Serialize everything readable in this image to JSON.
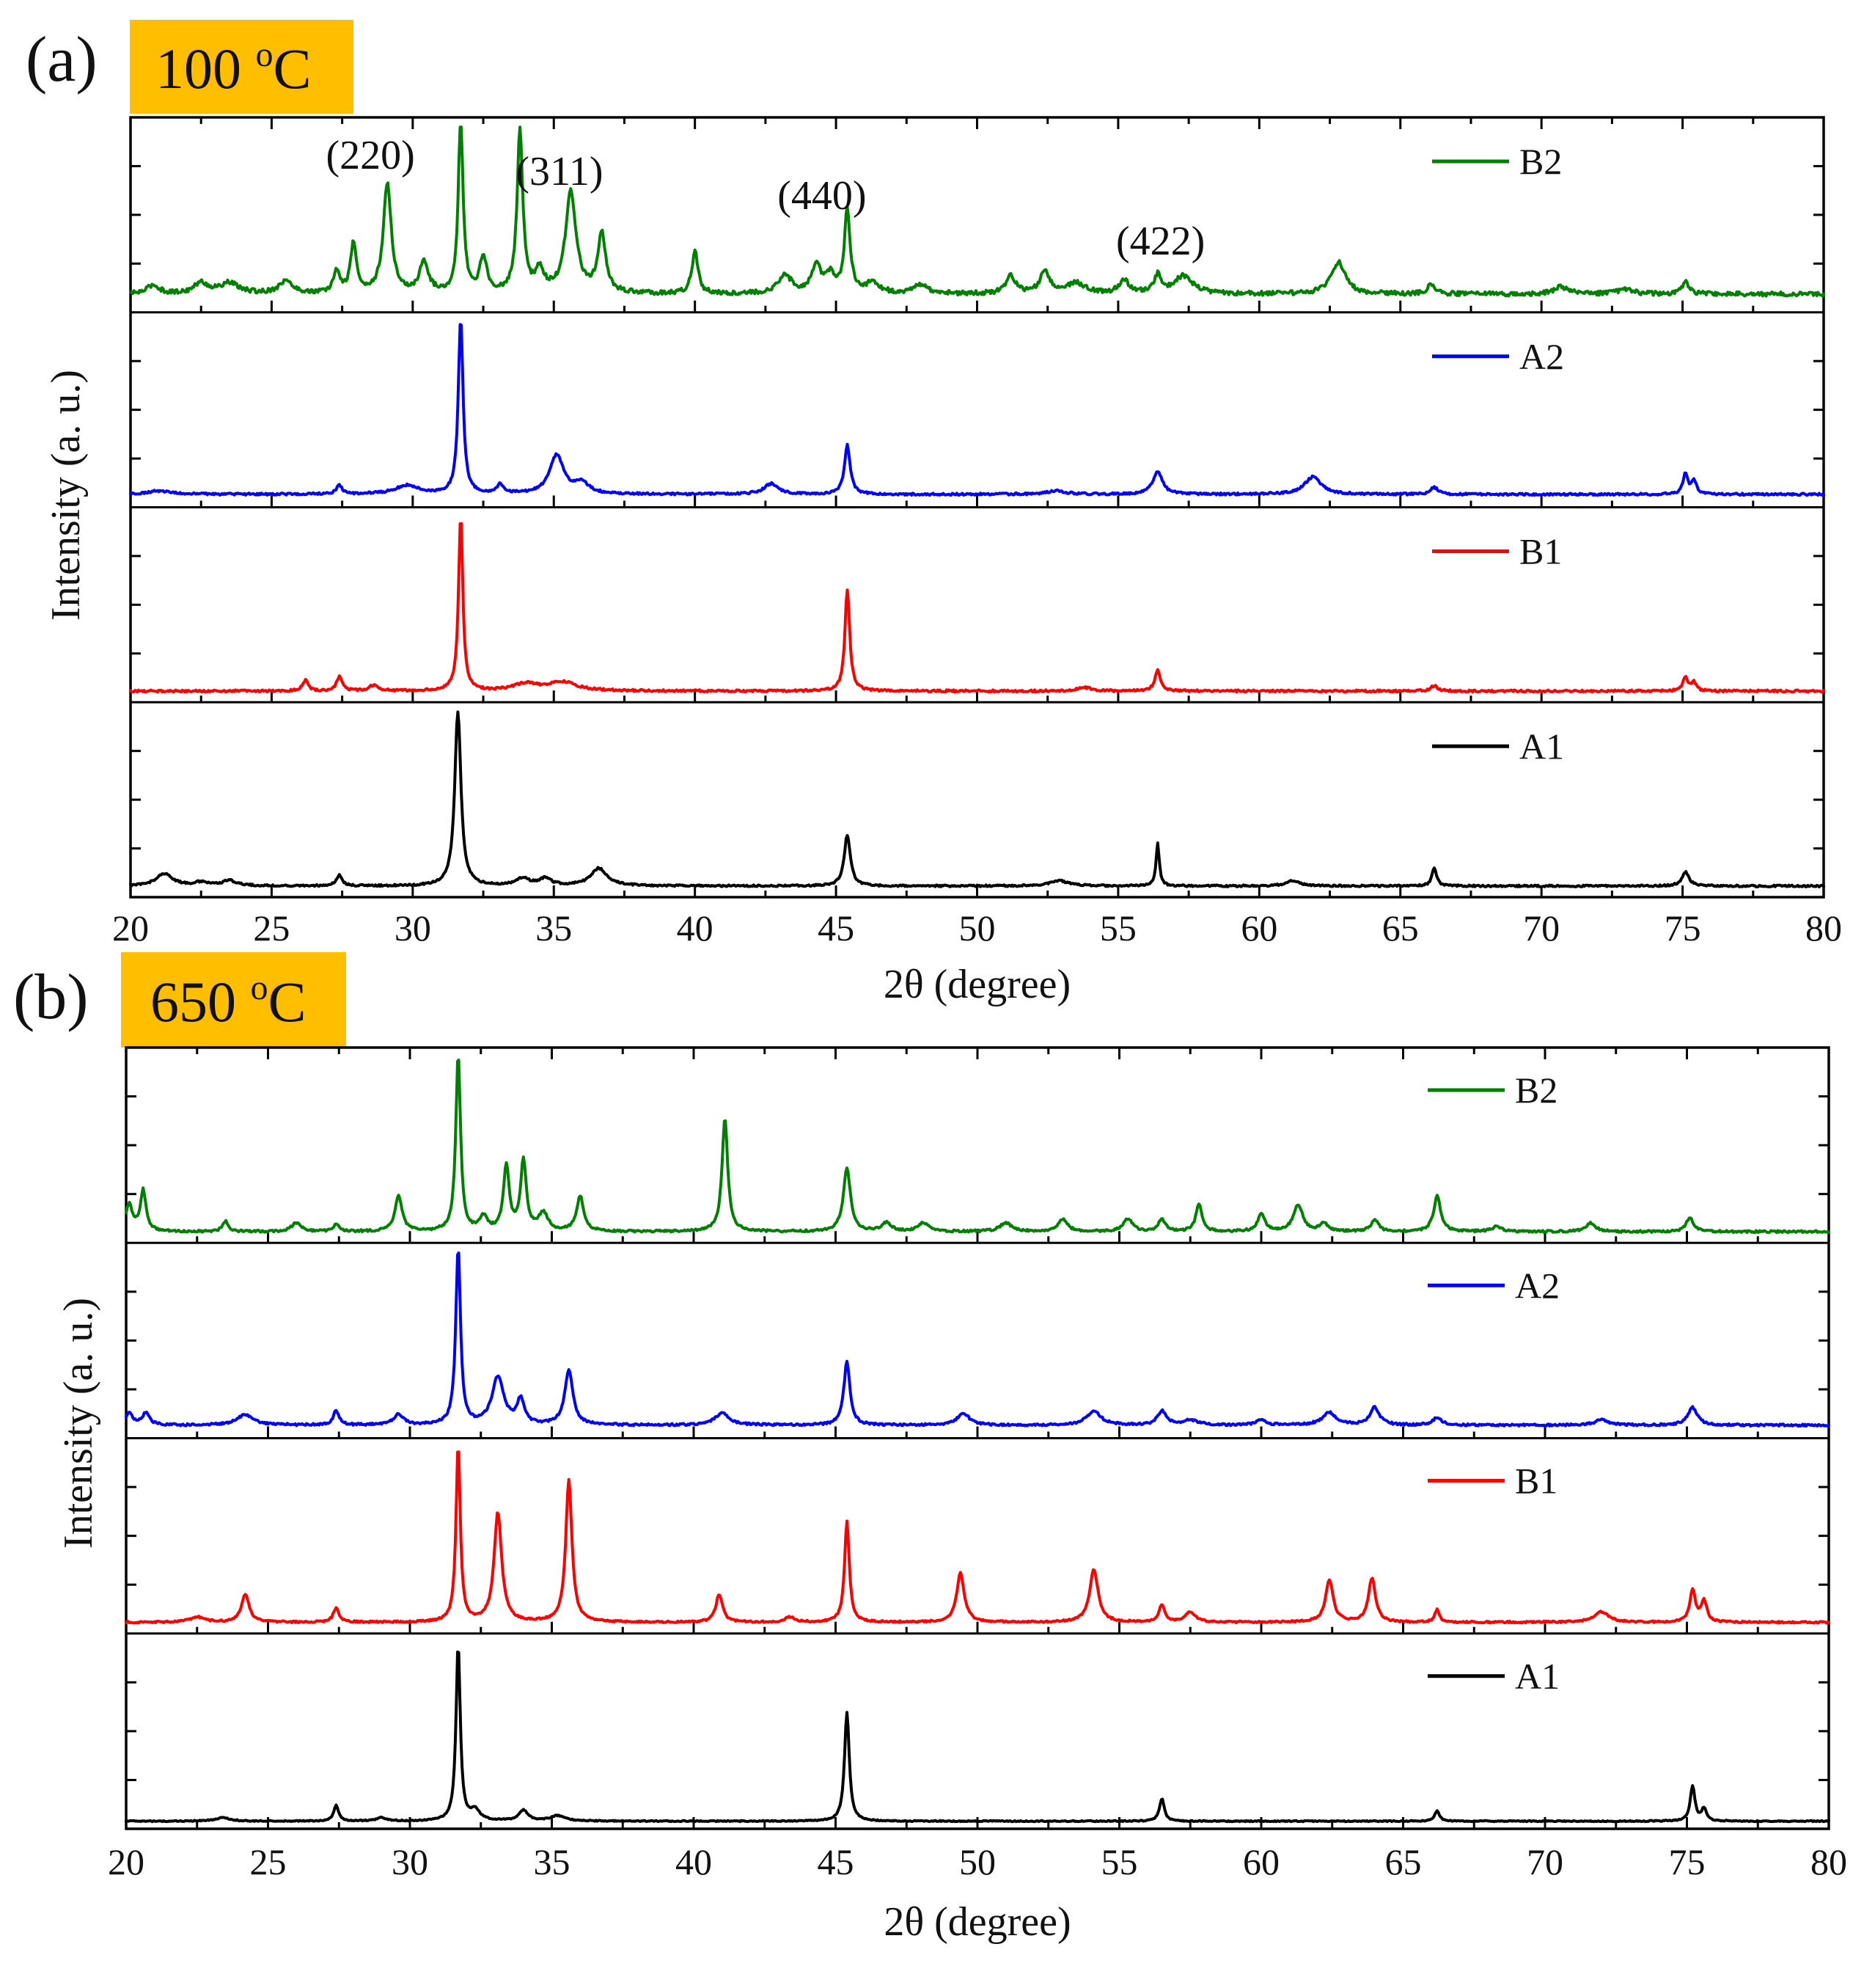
{
  "figure": {
    "colors": {
      "A1": "#000000",
      "B1": "#FF0000",
      "A2": "#0000FF",
      "B2": "#008000",
      "temp_box": "#FFBF00"
    }
  },
  "chart_data": [
    {
      "type": "line",
      "panel_label": "(a)",
      "temperature_label": "100 °C",
      "temperature_value": "100",
      "temperature_unit": "C",
      "temperature_superscript": "o",
      "xlabel": "2θ (degree)",
      "ylabel": "Intensity (a. u.)",
      "xlim": [
        20,
        80
      ],
      "xticks": [
        "20",
        "25",
        "30",
        "35",
        "40",
        "45",
        "50",
        "55",
        "60",
        "65",
        "70",
        "75",
        "80"
      ],
      "annotations": [
        {
          "text": "(220)",
          "x": 28.5
        },
        {
          "text": "(311)",
          "x": 35.2
        },
        {
          "text": "(440)",
          "x": 44.5
        },
        {
          "text": "(422)",
          "x": 56.5
        }
      ],
      "series": [
        {
          "name": "B2",
          "color": "#008000",
          "baseline": 0.07,
          "noise": 0.025,
          "peaks": [
            [
              20.8,
              0.05,
              0.25
            ],
            [
              22.5,
              0.06,
              0.3
            ],
            [
              23.5,
              0.06,
              0.4
            ],
            [
              25.5,
              0.07,
              0.3
            ],
            [
              27.3,
              0.13,
              0.12
            ],
            [
              27.9,
              0.28,
              0.13
            ],
            [
              29.1,
              0.62,
              0.17
            ],
            [
              30.4,
              0.18,
              0.18
            ],
            [
              31.7,
              1.0,
              0.1
            ],
            [
              32.5,
              0.2,
              0.15
            ],
            [
              33.8,
              0.93,
              0.12
            ],
            [
              34.5,
              0.12,
              0.18
            ],
            [
              35.6,
              0.58,
              0.22
            ],
            [
              36.7,
              0.33,
              0.17
            ],
            [
              40.0,
              0.24,
              0.13
            ],
            [
              43.2,
              0.1,
              0.3
            ],
            [
              44.3,
              0.15,
              0.2
            ],
            [
              44.8,
              0.1,
              0.2
            ],
            [
              45.4,
              0.47,
              0.12
            ],
            [
              46.3,
              0.06,
              0.3
            ],
            [
              48.0,
              0.05,
              0.3
            ],
            [
              51.2,
              0.1,
              0.2
            ],
            [
              52.4,
              0.13,
              0.2
            ],
            [
              53.5,
              0.06,
              0.4
            ],
            [
              55.2,
              0.08,
              0.2
            ],
            [
              56.4,
              0.1,
              0.15
            ],
            [
              57.3,
              0.1,
              0.4
            ],
            [
              62.8,
              0.18,
              0.3
            ],
            [
              66.1,
              0.06,
              0.15
            ],
            [
              70.7,
              0.04,
              0.3
            ],
            [
              73.0,
              0.03,
              0.3
            ],
            [
              75.1,
              0.07,
              0.15
            ]
          ]
        },
        {
          "name": "A2",
          "color": "#0000FF",
          "baseline": 0.04,
          "noise": 0.012,
          "peaks": [
            [
              21.0,
              0.02,
              0.5
            ],
            [
              27.4,
              0.05,
              0.12
            ],
            [
              29.8,
              0.05,
              0.5
            ],
            [
              31.7,
              1.0,
              0.1
            ],
            [
              33.1,
              0.05,
              0.15
            ],
            [
              35.1,
              0.22,
              0.3
            ],
            [
              36.0,
              0.06,
              0.3
            ],
            [
              42.7,
              0.06,
              0.3
            ],
            [
              45.4,
              0.28,
              0.12
            ],
            [
              52.8,
              0.02,
              0.4
            ],
            [
              56.4,
              0.13,
              0.2
            ],
            [
              61.9,
              0.1,
              0.35
            ],
            [
              66.2,
              0.04,
              0.15
            ],
            [
              75.1,
              0.12,
              0.1
            ],
            [
              75.4,
              0.08,
              0.1
            ]
          ]
        },
        {
          "name": "B1",
          "color": "#FF0000",
          "baseline": 0.03,
          "noise": 0.012,
          "peaks": [
            [
              26.2,
              0.06,
              0.12
            ],
            [
              27.4,
              0.08,
              0.12
            ],
            [
              28.6,
              0.03,
              0.2
            ],
            [
              31.7,
              1.0,
              0.09
            ],
            [
              34.0,
              0.04,
              0.5
            ],
            [
              35.3,
              0.05,
              0.6
            ],
            [
              45.4,
              0.58,
              0.1
            ],
            [
              53.8,
              0.02,
              0.3
            ],
            [
              56.4,
              0.12,
              0.12
            ],
            [
              66.2,
              0.03,
              0.15
            ],
            [
              75.1,
              0.08,
              0.1
            ],
            [
              75.4,
              0.05,
              0.1
            ]
          ]
        },
        {
          "name": "A1",
          "color": "#000000",
          "baseline": 0.03,
          "noise": 0.01,
          "peaks": [
            [
              21.2,
              0.07,
              0.35
            ],
            [
              22.5,
              0.02,
              0.3
            ],
            [
              23.5,
              0.03,
              0.3
            ],
            [
              27.4,
              0.06,
              0.12
            ],
            [
              31.6,
              1.0,
              0.13
            ],
            [
              33.9,
              0.04,
              0.3
            ],
            [
              34.7,
              0.04,
              0.25
            ],
            [
              36.6,
              0.1,
              0.35
            ],
            [
              45.4,
              0.29,
              0.13
            ],
            [
              52.9,
              0.03,
              0.4
            ],
            [
              56.4,
              0.24,
              0.07
            ],
            [
              61.2,
              0.03,
              0.3
            ],
            [
              66.2,
              0.1,
              0.1
            ],
            [
              75.1,
              0.08,
              0.15
            ]
          ]
        }
      ]
    },
    {
      "type": "line",
      "panel_label": "(b)",
      "temperature_label": "650 °C",
      "temperature_value": "650",
      "temperature_unit": "C",
      "temperature_superscript": "o",
      "xlabel": "2θ (degree)",
      "ylabel": "Intensity (a. u.)",
      "xlim": [
        20,
        80
      ],
      "xticks": [
        "20",
        "25",
        "30",
        "35",
        "40",
        "45",
        "50",
        "55",
        "60",
        "65",
        "70",
        "75",
        "80"
      ],
      "annotations": [],
      "series": [
        {
          "name": "B2",
          "color": "#008000",
          "baseline": 0.03,
          "noise": 0.012,
          "peaks": [
            [
              20.1,
              0.15,
              0.15
            ],
            [
              20.6,
              0.23,
              0.12
            ],
            [
              23.5,
              0.06,
              0.12
            ],
            [
              26.0,
              0.05,
              0.2
            ],
            [
              27.4,
              0.04,
              0.12
            ],
            [
              29.6,
              0.2,
              0.15
            ],
            [
              31.7,
              1.0,
              0.1
            ],
            [
              32.6,
              0.08,
              0.15
            ],
            [
              33.4,
              0.37,
              0.12
            ],
            [
              34.0,
              0.4,
              0.12
            ],
            [
              34.7,
              0.1,
              0.2
            ],
            [
              36.0,
              0.2,
              0.15
            ],
            [
              41.1,
              0.64,
              0.12
            ],
            [
              45.4,
              0.36,
              0.15
            ],
            [
              46.8,
              0.05,
              0.2
            ],
            [
              48.1,
              0.05,
              0.2
            ],
            [
              51.0,
              0.05,
              0.25
            ],
            [
              53.0,
              0.07,
              0.2
            ],
            [
              55.3,
              0.07,
              0.2
            ],
            [
              56.5,
              0.07,
              0.15
            ],
            [
              57.8,
              0.16,
              0.12
            ],
            [
              60.0,
              0.1,
              0.15
            ],
            [
              61.3,
              0.15,
              0.2
            ],
            [
              62.2,
              0.05,
              0.15
            ],
            [
              64.0,
              0.07,
              0.15
            ],
            [
              66.2,
              0.2,
              0.15
            ],
            [
              68.3,
              0.03,
              0.2
            ],
            [
              71.6,
              0.05,
              0.2
            ],
            [
              75.1,
              0.08,
              0.15
            ]
          ]
        },
        {
          "name": "A2",
          "color": "#0000FF",
          "baseline": 0.04,
          "noise": 0.012,
          "peaks": [
            [
              20.1,
              0.07,
              0.15
            ],
            [
              20.7,
              0.07,
              0.15
            ],
            [
              24.2,
              0.06,
              0.35
            ],
            [
              27.4,
              0.08,
              0.12
            ],
            [
              29.6,
              0.06,
              0.2
            ],
            [
              31.7,
              1.0,
              0.1
            ],
            [
              33.1,
              0.27,
              0.25
            ],
            [
              33.9,
              0.14,
              0.15
            ],
            [
              35.6,
              0.31,
              0.17
            ],
            [
              41.0,
              0.07,
              0.3
            ],
            [
              45.4,
              0.36,
              0.13
            ],
            [
              49.5,
              0.07,
              0.25
            ],
            [
              54.1,
              0.08,
              0.3
            ],
            [
              56.5,
              0.08,
              0.18
            ],
            [
              57.5,
              0.03,
              0.3
            ],
            [
              60.0,
              0.03,
              0.2
            ],
            [
              62.4,
              0.07,
              0.3
            ],
            [
              64.0,
              0.1,
              0.2
            ],
            [
              66.2,
              0.04,
              0.2
            ],
            [
              72.0,
              0.03,
              0.3
            ],
            [
              75.2,
              0.1,
              0.2
            ]
          ]
        },
        {
          "name": "B1",
          "color": "#FF0000",
          "baseline": 0.03,
          "noise": 0.01,
          "peaks": [
            [
              22.5,
              0.03,
              0.3
            ],
            [
              24.2,
              0.16,
              0.16
            ],
            [
              27.4,
              0.08,
              0.12
            ],
            [
              31.7,
              1.0,
              0.09
            ],
            [
              33.1,
              0.62,
              0.16
            ],
            [
              35.6,
              0.81,
              0.13
            ],
            [
              40.9,
              0.16,
              0.14
            ],
            [
              43.4,
              0.03,
              0.2
            ],
            [
              45.4,
              0.57,
              0.1
            ],
            [
              49.4,
              0.28,
              0.16
            ],
            [
              54.1,
              0.3,
              0.18
            ],
            [
              56.5,
              0.1,
              0.12
            ],
            [
              57.5,
              0.06,
              0.2
            ],
            [
              62.4,
              0.24,
              0.16
            ],
            [
              63.9,
              0.25,
              0.15
            ],
            [
              66.2,
              0.07,
              0.1
            ],
            [
              72.0,
              0.06,
              0.3
            ],
            [
              75.2,
              0.18,
              0.12
            ],
            [
              75.6,
              0.12,
              0.12
            ]
          ]
        },
        {
          "name": "A1",
          "color": "#000000",
          "baseline": 0.01,
          "noise": 0.006,
          "peaks": [
            [
              23.4,
              0.02,
              0.3
            ],
            [
              27.4,
              0.09,
              0.1
            ],
            [
              29.0,
              0.02,
              0.2
            ],
            [
              31.7,
              1.0,
              0.09
            ],
            [
              32.3,
              0.06,
              0.2
            ],
            [
              34.0,
              0.06,
              0.2
            ],
            [
              35.2,
              0.03,
              0.3
            ],
            [
              45.4,
              0.62,
              0.1
            ],
            [
              56.5,
              0.13,
              0.1
            ],
            [
              66.2,
              0.06,
              0.1
            ],
            [
              75.2,
              0.2,
              0.1
            ],
            [
              75.6,
              0.07,
              0.1
            ]
          ]
        }
      ]
    }
  ]
}
